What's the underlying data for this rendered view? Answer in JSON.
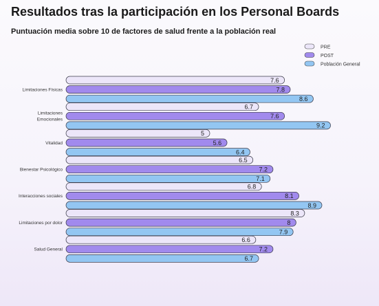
{
  "title": "Resultados tras la participación en los Personal Boards",
  "subtitle": "Puntuación media sobre 10 de factores de salud frente a la población real",
  "colors": {
    "PRE": "#ece6f9",
    "POST": "#a18aed",
    "Población General": "#93c6f2"
  },
  "chart_data": {
    "type": "bar",
    "orientation": "horizontal",
    "title": "Resultados tras la participación en los Personal Boards",
    "subtitle": "Puntuación media sobre 10 de factores de salud frente a la población real",
    "legend_position": "top-right",
    "categories": [
      [
        "Limitaciones Físicas"
      ],
      [
        "Limitaciones",
        "Emocionales"
      ],
      [
        "Vitalidad"
      ],
      [
        "Bienestar Psicológico"
      ],
      [
        "Interacciones sociales"
      ],
      [
        "Limitaciones por dolor"
      ],
      [
        "Salud General"
      ]
    ],
    "series": [
      {
        "name": "PRE",
        "values": [
          7.6,
          6.7,
          5,
          6.5,
          6.8,
          8.3,
          6.6
        ]
      },
      {
        "name": "POST",
        "values": [
          7.8,
          7.6,
          5.6,
          7.2,
          8.1,
          8,
          7.2
        ]
      },
      {
        "name": "Población General",
        "values": [
          8.6,
          9.2,
          6.4,
          7.1,
          8.9,
          7.9,
          6.7
        ]
      }
    ]
  }
}
